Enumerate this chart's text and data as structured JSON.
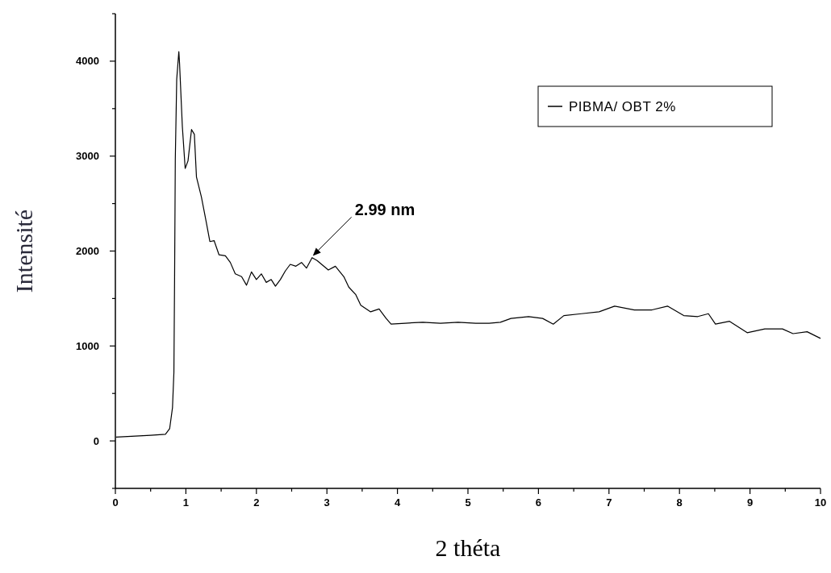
{
  "chart_data": {
    "type": "line",
    "xlabel": "2 théta",
    "ylabel": "Intensité",
    "x": [
      0.01,
      0.5,
      0.71,
      0.77,
      0.81,
      0.83,
      0.84,
      0.85,
      0.87,
      0.9,
      0.91,
      0.95,
      0.99,
      1.03,
      1.08,
      1.12,
      1.15,
      1.22,
      1.29,
      1.34,
      1.4,
      1.47,
      1.56,
      1.63,
      1.7,
      1.79,
      1.86,
      1.93,
      2.0,
      2.07,
      2.14,
      2.21,
      2.27,
      2.34,
      2.41,
      2.48,
      2.56,
      2.64,
      2.71,
      2.79,
      2.86,
      3.02,
      3.12,
      3.24,
      3.31,
      3.41,
      3.48,
      3.62,
      3.74,
      3.84,
      3.91,
      4.11,
      4.36,
      4.61,
      4.86,
      5.11,
      5.3,
      5.46,
      5.61,
      5.86,
      6.06,
      6.21,
      6.36,
      6.61,
      6.86,
      7.08,
      7.36,
      7.61,
      7.83,
      8.06,
      8.26,
      8.41,
      8.51,
      8.71,
      8.96,
      9.21,
      9.46,
      9.61,
      9.81,
      10.0
    ],
    "series": [
      {
        "name": "PIBMA/ OBT 2%",
        "color": "#000000",
        "values": [
          40,
          60,
          70,
          130,
          350,
          720,
          1730,
          2970,
          3810,
          4100,
          3980,
          3310,
          2870,
          2950,
          3280,
          3230,
          2780,
          2570,
          2300,
          2100,
          2110,
          1960,
          1950,
          1880,
          1760,
          1730,
          1640,
          1780,
          1700,
          1760,
          1670,
          1700,
          1630,
          1700,
          1790,
          1860,
          1840,
          1880,
          1820,
          1930,
          1900,
          1800,
          1840,
          1730,
          1620,
          1540,
          1430,
          1360,
          1390,
          1290,
          1230,
          1240,
          1250,
          1240,
          1250,
          1240,
          1240,
          1250,
          1290,
          1310,
          1290,
          1230,
          1320,
          1340,
          1360,
          1420,
          1380,
          1380,
          1420,
          1320,
          1310,
          1340,
          1230,
          1260,
          1140,
          1180,
          1180,
          1130,
          1150,
          1080
        ]
      }
    ],
    "xlim": [
      0,
      10
    ],
    "ylim": [
      -500,
      4500
    ],
    "xticks": [
      0,
      {
        "value": 0.5,
        "label": null
      },
      1,
      {
        "value": 1.5,
        "label": null
      },
      2,
      {
        "value": 2.5,
        "label": null
      },
      3,
      {
        "value": 3.5,
        "label": null
      },
      4,
      {
        "value": 4.5,
        "label": null
      },
      5,
      {
        "value": 5.5,
        "label": null
      },
      6,
      {
        "value": 6.5,
        "label": null
      },
      7,
      {
        "value": 7.5,
        "label": null
      },
      8,
      {
        "value": 8.5,
        "label": null
      },
      9,
      {
        "value": 9.5,
        "label": null
      },
      10
    ],
    "yticks": [
      {
        "value": -500,
        "label": null
      },
      0,
      {
        "value": 500,
        "label": null
      },
      1000,
      {
        "value": 1500,
        "label": null
      },
      2000,
      {
        "value": 2500,
        "label": null
      },
      3000,
      {
        "value": 3500,
        "label": null
      },
      4000,
      {
        "value": 4500,
        "label": null
      }
    ],
    "legend": "top right",
    "marker": "none",
    "line_style": "solid",
    "grid": false,
    "annotations": [
      {
        "text": "2.99 nm",
        "x": 2.8,
        "y": 1950
      }
    ]
  }
}
